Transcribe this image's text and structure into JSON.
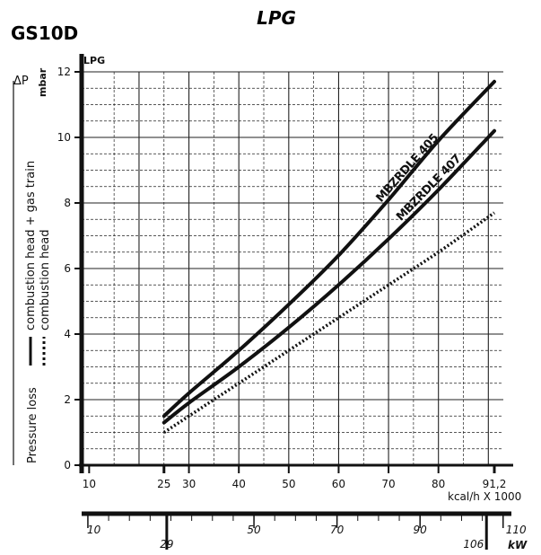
{
  "header": {
    "title": "LPG",
    "model": "GS10D"
  },
  "chart_data": {
    "type": "line",
    "title": "LPG",
    "subtitle": "GS10D",
    "y_axis": {
      "label_top": "LPG",
      "label_symbol": "ΔP",
      "unit": "mbar",
      "ticks": [
        0,
        2,
        4,
        6,
        8,
        10,
        12
      ],
      "ylim": [
        0,
        12
      ]
    },
    "x_axis": {
      "label": "kcal/h X 1000",
      "ticks": [
        10,
        25,
        30,
        40,
        50,
        60,
        70,
        80,
        91.2
      ],
      "tick_labels": [
        "10",
        "25",
        "30",
        "40",
        "50",
        "60",
        "70",
        "80",
        "91,2"
      ],
      "xlim": [
        8.5,
        93
      ]
    },
    "x2_axis": {
      "unit": "kW",
      "ticks": [
        10,
        29,
        50,
        70,
        90,
        106,
        110
      ],
      "tick_labels": [
        "10",
        "29",
        "50",
        "70",
        "90",
        "106",
        "110"
      ],
      "xlim": [
        8.5,
        112
      ]
    },
    "side_label": {
      "title": "Pressure loss",
      "solid_legend": "combustion head + gas train",
      "dotted_legend": "combustion head"
    },
    "grid": true,
    "series": [
      {
        "name": "MBZRDLE 405",
        "style": "solid",
        "x": [
          25,
          30,
          40,
          50,
          60,
          70,
          80,
          91.2
        ],
        "y": [
          1.5,
          2.2,
          3.5,
          4.9,
          6.4,
          8.1,
          9.9,
          11.7
        ]
      },
      {
        "name": "MBZRDLE 407",
        "style": "solid",
        "x": [
          25,
          30,
          40,
          50,
          60,
          70,
          80,
          91.2
        ],
        "y": [
          1.3,
          1.9,
          3.0,
          4.2,
          5.5,
          6.9,
          8.4,
          10.2
        ]
      },
      {
        "name": "",
        "style": "dotted",
        "x": [
          25,
          30,
          40,
          50,
          60,
          70,
          80,
          91.2
        ],
        "y": [
          1.0,
          1.5,
          2.5,
          3.5,
          4.5,
          5.5,
          6.5,
          7.7
        ]
      }
    ]
  }
}
